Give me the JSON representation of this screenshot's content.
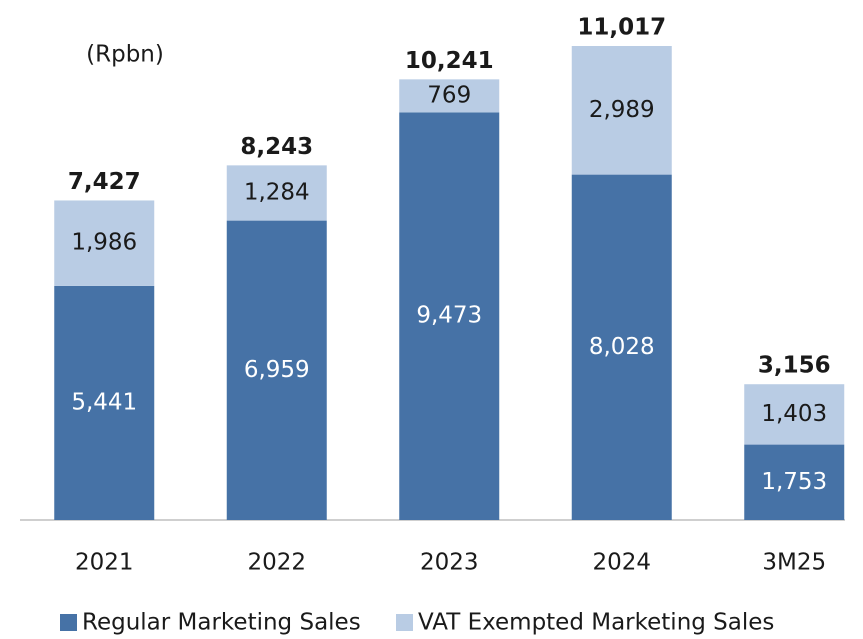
{
  "chart_data": {
    "type": "stacked_bar",
    "unit_label": "(Rpbn)",
    "categories": [
      "2021",
      "2022",
      "2023",
      "2024",
      "3M25"
    ],
    "series": [
      {
        "name": "Regular Marketing Sales",
        "color": "#4672a6",
        "label_color": "#ffffff",
        "values": [
          5441,
          6959,
          9473,
          8028,
          1753
        ],
        "value_labels": [
          "5,441",
          "6,959",
          "9,473",
          "8,028",
          "1,753"
        ]
      },
      {
        "name": "VAT Exempted Marketing Sales",
        "color": "#b9cce4",
        "label_color": "#1a1a1a",
        "values": [
          1986,
          1284,
          769,
          2989,
          1403
        ],
        "value_labels": [
          "1,986",
          "1,284",
          "769",
          "2,989",
          "1,403"
        ]
      }
    ],
    "totals": [
      7427,
      8243,
      10241,
      11017,
      3156
    ],
    "total_labels": [
      "7,427",
      "8,243",
      "10,241",
      "11,017",
      "3,156"
    ]
  }
}
